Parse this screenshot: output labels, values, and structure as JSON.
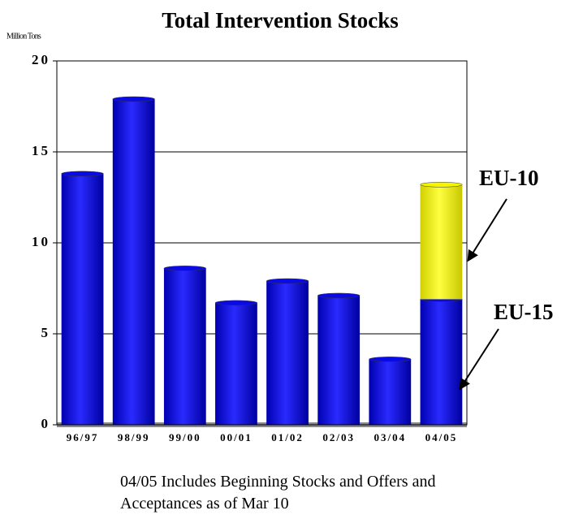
{
  "chart_data": {
    "type": "stacked_bar",
    "title": "Total Intervention Stocks",
    "ylabel": "Million Tons",
    "categories": [
      "96/97",
      "98/99",
      "99/00",
      "00/01",
      "01/02",
      "02/03",
      "03/04",
      "04/05"
    ],
    "series": [
      {
        "name": "EU-15",
        "color": "#0a0ae6",
        "values": [
          13.8,
          17.9,
          8.6,
          6.7,
          7.9,
          7.1,
          3.6,
          6.9
        ]
      },
      {
        "name": "EU-10",
        "color": "#f5f500",
        "values": [
          null,
          null,
          null,
          null,
          null,
          null,
          null,
          6.3
        ]
      }
    ],
    "ylim": [
      0,
      20
    ],
    "yticks": [
      0,
      5,
      10,
      15,
      20
    ],
    "grid": true,
    "annotations": [
      "EU-10",
      "EU-15"
    ],
    "note": "04/05 Includes Beginning Stocks and Offers and Acceptances as of Mar 10"
  }
}
